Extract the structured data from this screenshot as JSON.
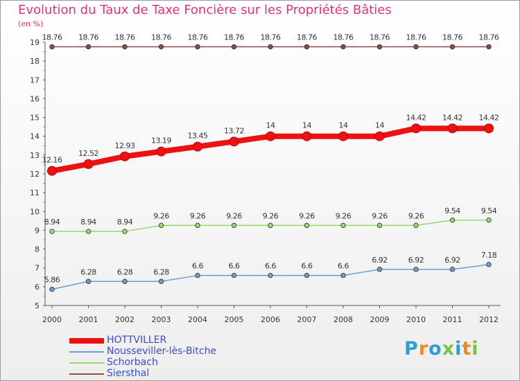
{
  "title": "Evolution du Taux de Taxe Foncière sur les Propriétés Bâties",
  "unit_label": "(en %)",
  "logo": {
    "text": "Proxiti",
    "colors": [
      "#2a9fd6",
      "#f08a1c",
      "#2a9fd6",
      "#7ac143",
      "#2a9fd6",
      "#f08a1c",
      "#7ac143"
    ]
  },
  "chart_data": {
    "type": "line",
    "title": "Evolution du Taux de Taxe Foncière sur les Propriétés Bâties",
    "ylabel": "(en %)",
    "xlabel": "",
    "x": [
      "2000",
      "2001",
      "2002",
      "2003",
      "2004",
      "2005",
      "2006",
      "2007",
      "2008",
      "2009",
      "2010",
      "2011",
      "2012"
    ],
    "ylim": [
      5,
      19
    ],
    "yticks": [
      5,
      6,
      7,
      8,
      9,
      10,
      11,
      12,
      13,
      14,
      15,
      16,
      17,
      18,
      19
    ],
    "grid": false,
    "legend_position": "bottom-left",
    "series": [
      {
        "name": "HOTTVILLER",
        "color": "#ee1111",
        "line_width": 8,
        "values": [
          12.16,
          12.52,
          12.93,
          13.19,
          13.45,
          13.72,
          14,
          14,
          14,
          14,
          14.42,
          14.42,
          14.42
        ],
        "labels": [
          "12.16",
          "12.52",
          "12.93",
          "13.19",
          "13.45",
          "13.72",
          "14",
          "14",
          "14",
          "14",
          "14.42",
          "14.42",
          "14.42"
        ]
      },
      {
        "name": "Nousseviller-lès-Bitche",
        "color": "#6a9cd0",
        "line_width": 1.5,
        "values": [
          5.86,
          6.28,
          6.28,
          6.28,
          6.6,
          6.6,
          6.6,
          6.6,
          6.6,
          6.92,
          6.92,
          6.92,
          7.18
        ],
        "labels": [
          "5.86",
          "6.28",
          "6.28",
          "6.28",
          "6.6",
          "6.6",
          "6.6",
          "6.6",
          "6.6",
          "6.92",
          "6.92",
          "6.92",
          "7.18"
        ]
      },
      {
        "name": "Schorbach",
        "color": "#9ad66a",
        "line_width": 1.5,
        "values": [
          8.94,
          8.94,
          8.94,
          9.26,
          9.26,
          9.26,
          9.26,
          9.26,
          9.26,
          9.26,
          9.26,
          9.54,
          9.54
        ],
        "labels": [
          "8.94",
          "8.94",
          "8.94",
          "9.26",
          "9.26",
          "9.26",
          "9.26",
          "9.26",
          "9.26",
          "9.26",
          "9.26",
          "9.54",
          "9.54"
        ]
      },
      {
        "name": "Siersthal",
        "color": "#8b4a4a",
        "line_width": 1.5,
        "values": [
          18.76,
          18.76,
          18.76,
          18.76,
          18.76,
          18.76,
          18.76,
          18.76,
          18.76,
          18.76,
          18.76,
          18.76,
          18.76
        ],
        "labels": [
          "18.76",
          "18.76",
          "18.76",
          "18.76",
          "18.76",
          "18.76",
          "18.76",
          "18.76",
          "18.76",
          "18.76",
          "18.76",
          "18.76",
          "18.76"
        ]
      }
    ]
  }
}
